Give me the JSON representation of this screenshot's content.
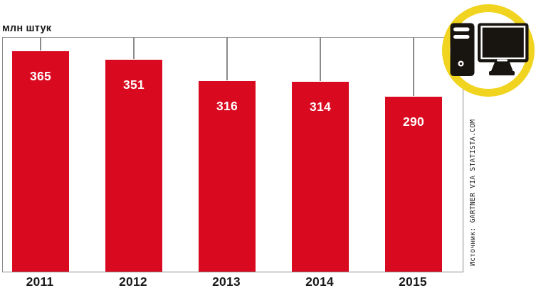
{
  "unit_label": "млн штук",
  "source_label": "Источник: GARTNER VIA STATISTA.COM",
  "icon": {
    "name": "desktop-computer-icon",
    "ring_color": "#f1d41f",
    "glyph_color": "#181511"
  },
  "colors": {
    "bar_red": "#d90a20",
    "axis_gray": "#8a8a8a",
    "text_black": "#1a1a1a",
    "value_label_white": "#ffffff",
    "ring_yellow": "#f1d41f"
  },
  "chart_data": {
    "type": "bar",
    "title": "",
    "xlabel": "",
    "ylabel": "млн штук",
    "categories": [
      "2011",
      "2012",
      "2013",
      "2014",
      "2015"
    ],
    "values": [
      365,
      351,
      316,
      314,
      290
    ],
    "bar_labels_visible": true,
    "ylim": [
      0,
      390
    ],
    "grid": false,
    "legend": null,
    "annotations": [
      "Источник: GARTNER VIA STATISTA.COM"
    ]
  }
}
